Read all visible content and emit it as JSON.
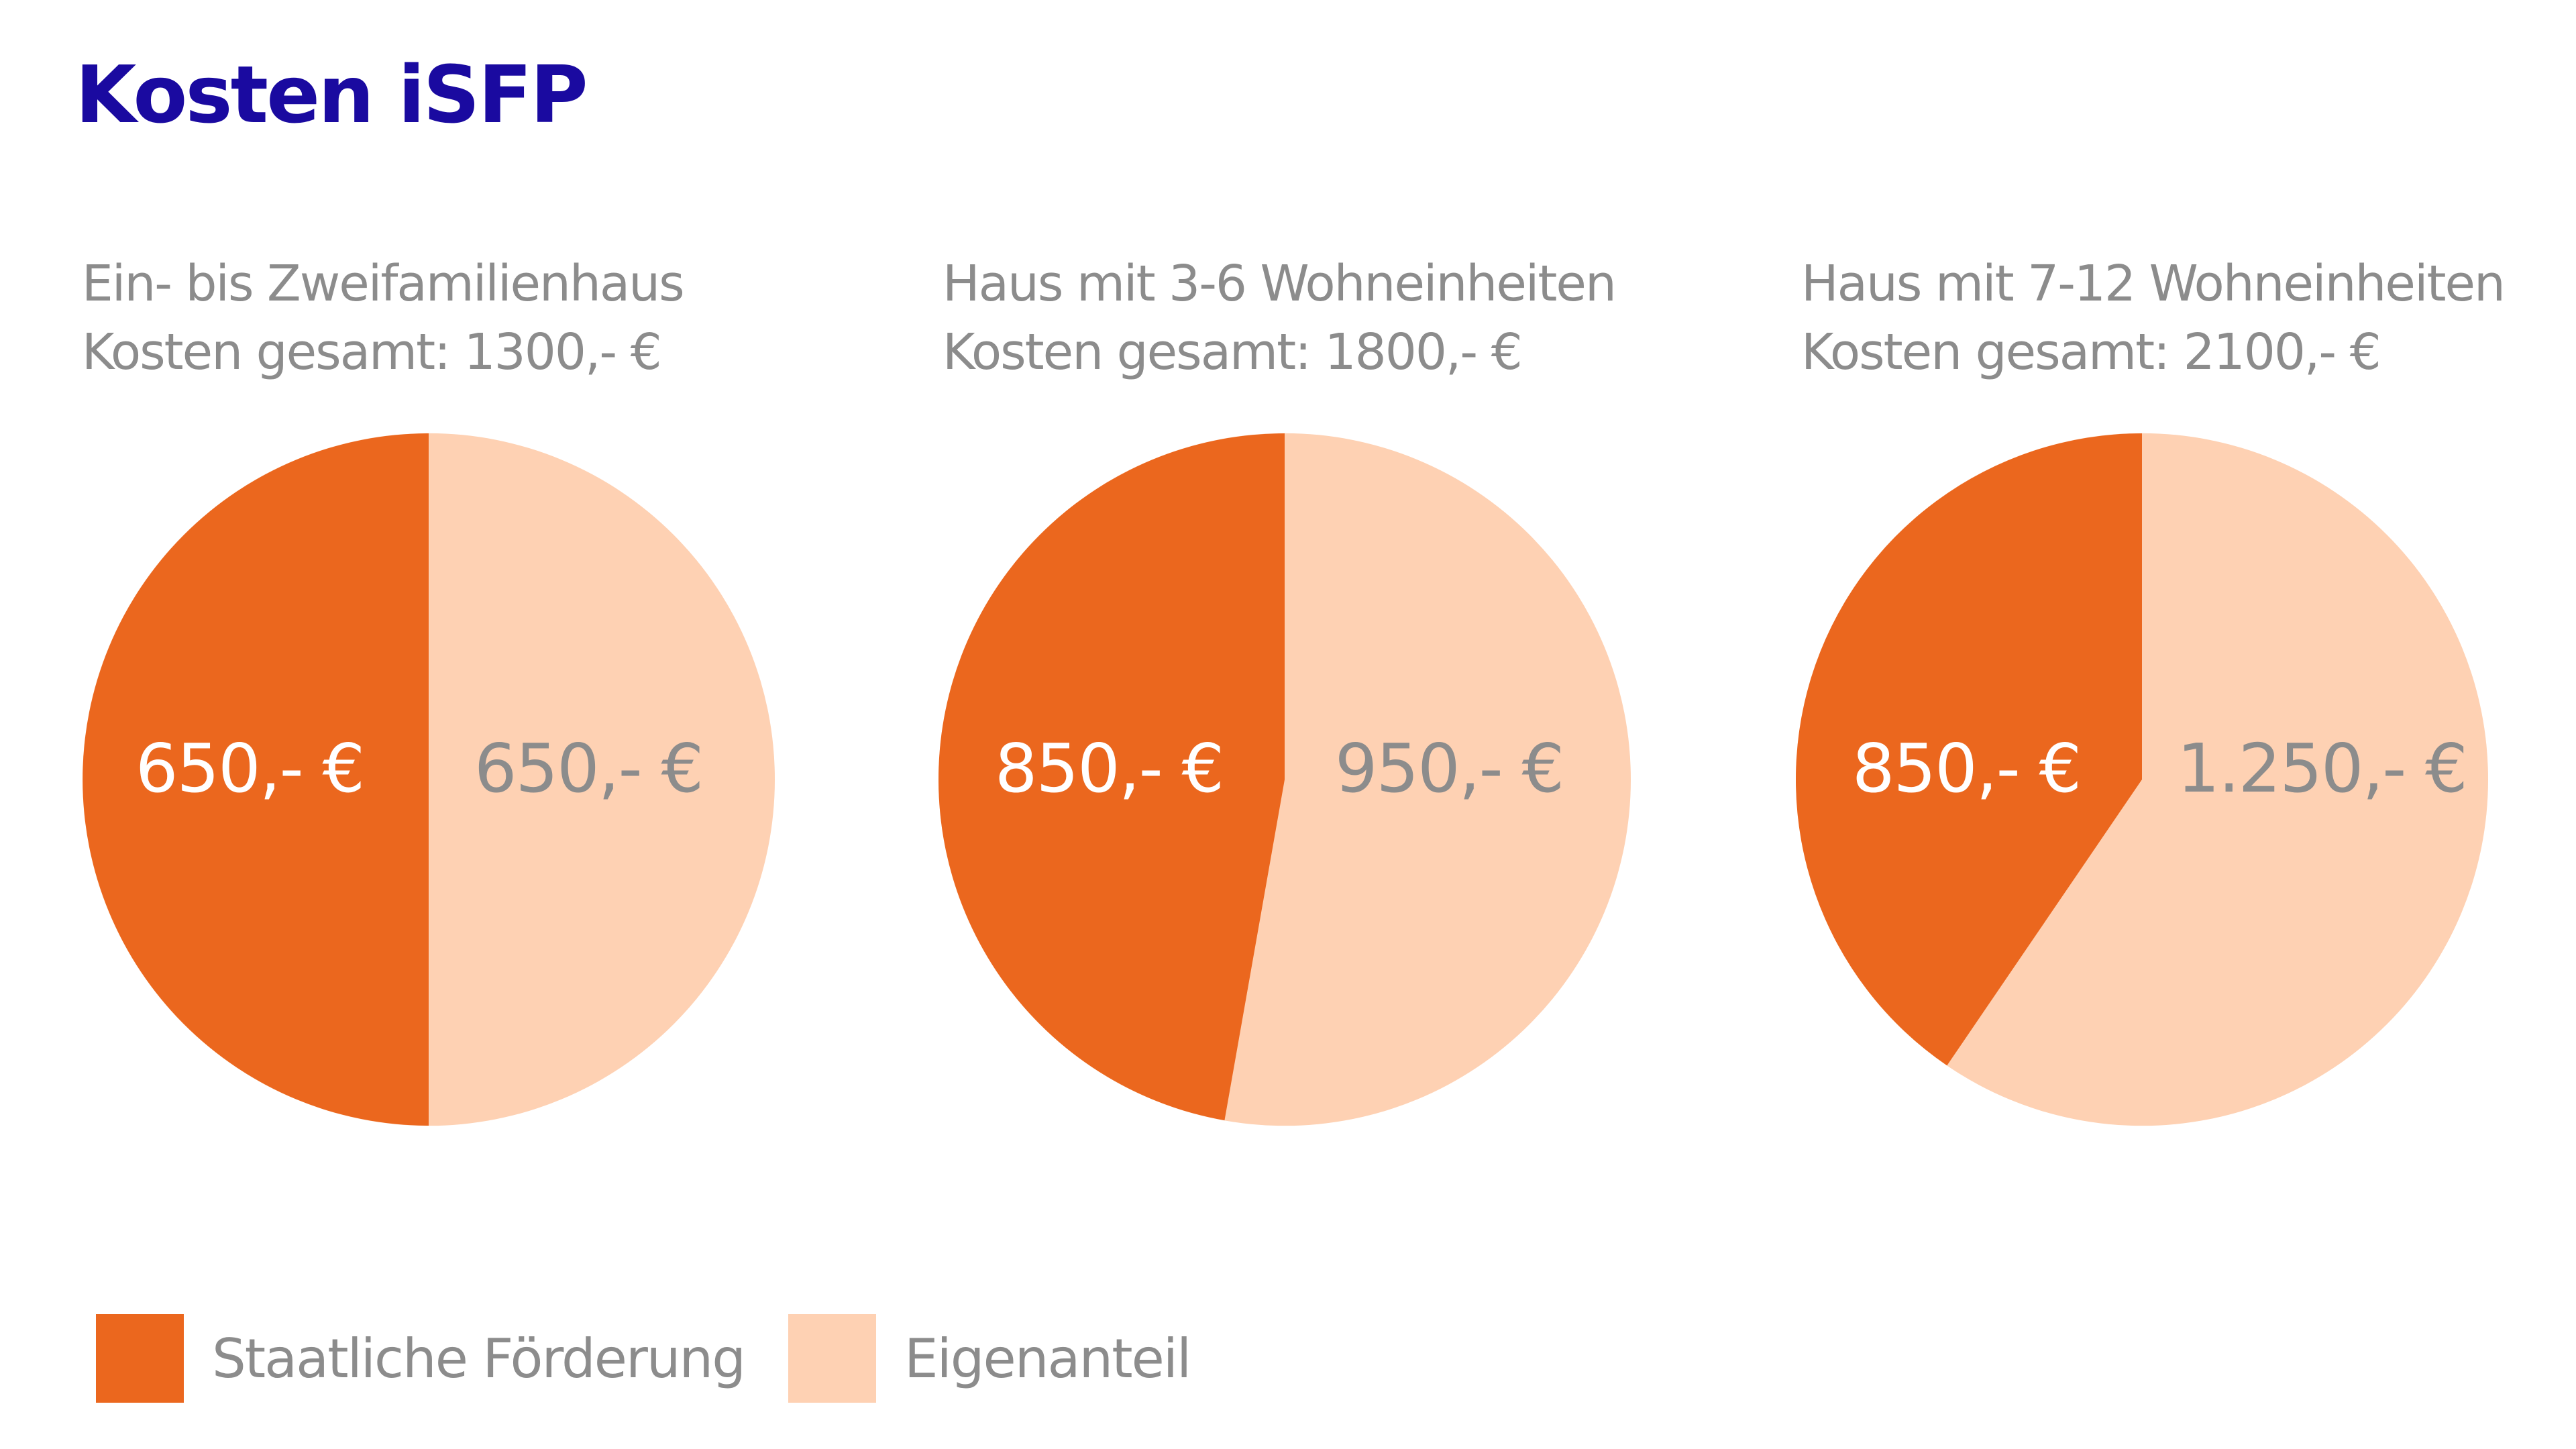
{
  "title": "Kosten iSFP",
  "colors": {
    "title": "#1a0aa0",
    "staatlich": "#eb671e",
    "eigen": "#fed1b3",
    "caption_text": "#8c8c8c",
    "label_on_dark": "#ffffff",
    "label_on_light": "#8c8c8c"
  },
  "pies": [
    {
      "heading": "Ein- bis Zweifamilienhaus",
      "total_label": "Kosten gesamt: 1300,- €",
      "staatlich_label": "650,- €",
      "eigen_label": "650,- €"
    },
    {
      "heading": "Haus mit 3-6 Wohneinheiten",
      "total_label": "Kosten gesamt: 1800,- €",
      "staatlich_label": "850,- €",
      "eigen_label": "950,- €"
    },
    {
      "heading": "Haus mit 7-12 Wohneinheiten",
      "total_label": "Kosten gesamt: 2100,- €",
      "staatlich_label": "850,- €",
      "eigen_label": "1.250,- €"
    }
  ],
  "legend": [
    {
      "label": "Staatliche Förderung",
      "color": "#eb671e"
    },
    {
      "label": "Eigenanteil",
      "color": "#fed1b3"
    }
  ],
  "chart_data": [
    {
      "type": "pie",
      "title": "Ein- bis Zweifamilienhaus",
      "subtitle": "Kosten gesamt: 1300,- €",
      "categories": [
        "Staatliche Förderung",
        "Eigenanteil"
      ],
      "values": [
        650,
        650
      ],
      "labels": [
        "650,- €",
        "650,- €"
      ],
      "colors": [
        "#eb671e",
        "#fed1b3"
      ],
      "total": 1300
    },
    {
      "type": "pie",
      "title": "Haus mit 3-6 Wohneinheiten",
      "subtitle": "Kosten gesamt: 1800,- €",
      "categories": [
        "Staatliche Förderung",
        "Eigenanteil"
      ],
      "values": [
        850,
        950
      ],
      "labels": [
        "850,- €",
        "950,- €"
      ],
      "colors": [
        "#eb671e",
        "#fed1b3"
      ],
      "total": 1800
    },
    {
      "type": "pie",
      "title": "Haus mit 7-12 Wohneinheiten",
      "subtitle": "Kosten gesamt: 2100,- €",
      "categories": [
        "Staatliche Förderung",
        "Eigenanteil"
      ],
      "values": [
        850,
        1250
      ],
      "labels": [
        "850,- €",
        "1.250,- €"
      ],
      "colors": [
        "#eb671e",
        "#fed1b3"
      ],
      "total": 2100
    }
  ]
}
